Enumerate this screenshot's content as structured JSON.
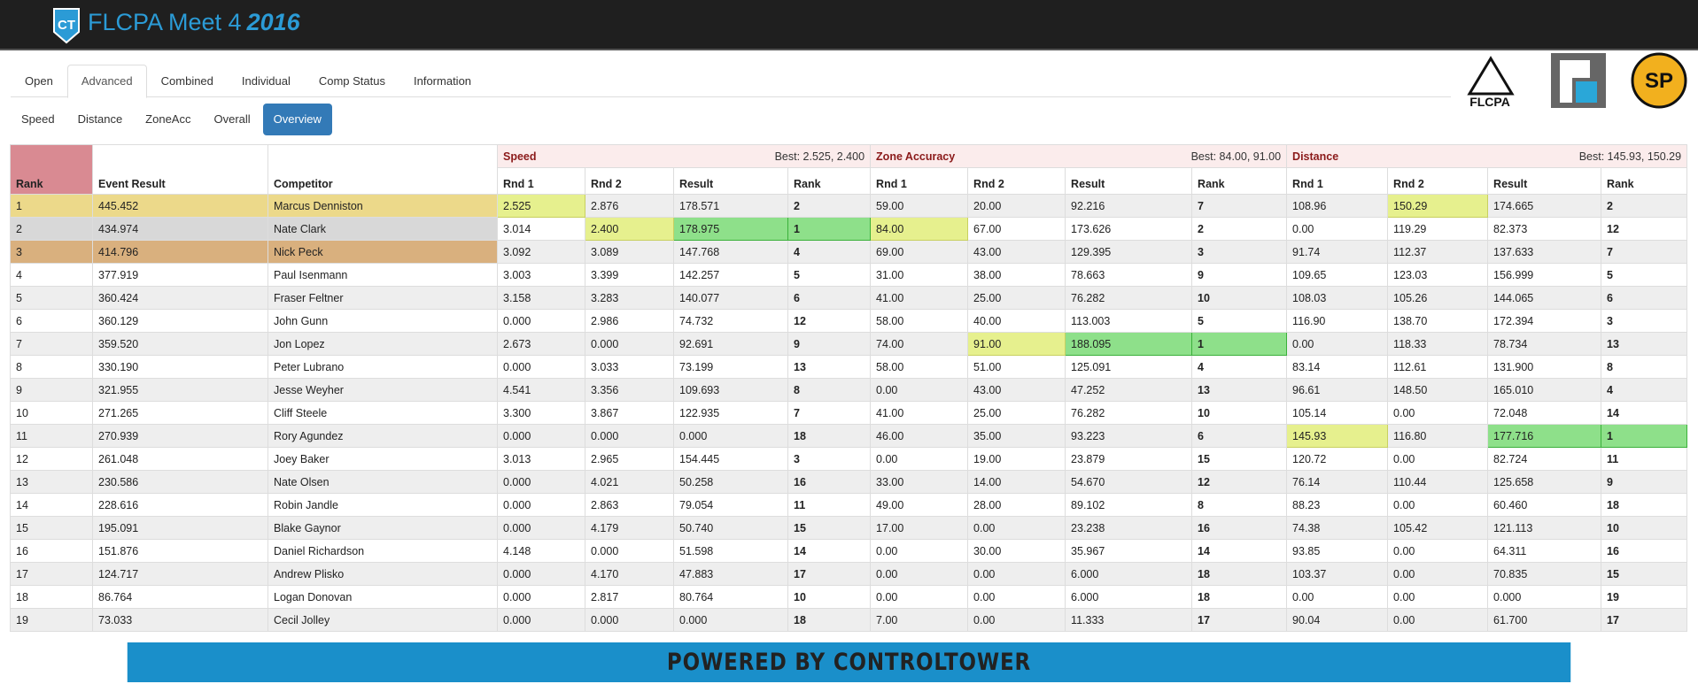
{
  "header": {
    "logo": "CT",
    "title": "FLCPA Meet 4",
    "year": "2016"
  },
  "tabs": [
    "Open",
    "Advanced",
    "Combined",
    "Individual",
    "Comp Status",
    "Information"
  ],
  "subtabs": [
    "Speed",
    "Distance",
    "ZoneAcc",
    "Overall",
    "Overview"
  ],
  "logos": [
    "FLCPA"
  ],
  "table": {
    "groups": [
      {
        "name": "Speed",
        "best": "Best: 2.525, 2.400"
      },
      {
        "name": "Zone Accuracy",
        "best": "Best: 84.00, 91.00"
      },
      {
        "name": "Distance",
        "best": "Best: 145.93, 150.29"
      }
    ],
    "columns": [
      "Rank",
      "Event Result",
      "Competitor",
      "Rnd 1",
      "Rnd 2",
      "Result",
      "Rank",
      "Rnd 1",
      "Rnd 2",
      "Result",
      "Rank",
      "Rnd 1",
      "Rnd 2",
      "Result",
      "Rank"
    ],
    "rows": [
      [
        "1",
        "445.452",
        "Marcus Denniston",
        "2.525",
        "2.876",
        "178.571",
        "2",
        "59.00",
        "20.00",
        "92.216",
        "7",
        "108.96",
        "150.29",
        "174.665",
        "2"
      ],
      [
        "2",
        "434.974",
        "Nate Clark",
        "3.014",
        "2.400",
        "178.975",
        "1",
        "84.00",
        "67.00",
        "173.626",
        "2",
        "0.00",
        "119.29",
        "82.373",
        "12"
      ],
      [
        "3",
        "414.796",
        "Nick Peck",
        "3.092",
        "3.089",
        "147.768",
        "4",
        "69.00",
        "43.00",
        "129.395",
        "3",
        "91.74",
        "112.37",
        "137.633",
        "7"
      ],
      [
        "4",
        "377.919",
        "Paul Isenmann",
        "3.003",
        "3.399",
        "142.257",
        "5",
        "31.00",
        "38.00",
        "78.663",
        "9",
        "109.65",
        "123.03",
        "156.999",
        "5"
      ],
      [
        "5",
        "360.424",
        "Fraser Feltner",
        "3.158",
        "3.283",
        "140.077",
        "6",
        "41.00",
        "25.00",
        "76.282",
        "10",
        "108.03",
        "105.26",
        "144.065",
        "6"
      ],
      [
        "6",
        "360.129",
        "John Gunn",
        "0.000",
        "2.986",
        "74.732",
        "12",
        "58.00",
        "40.00",
        "113.003",
        "5",
        "116.90",
        "138.70",
        "172.394",
        "3"
      ],
      [
        "7",
        "359.520",
        "Jon Lopez",
        "2.673",
        "0.000",
        "92.691",
        "9",
        "74.00",
        "91.00",
        "188.095",
        "1",
        "0.00",
        "118.33",
        "78.734",
        "13"
      ],
      [
        "8",
        "330.190",
        "Peter Lubrano",
        "0.000",
        "3.033",
        "73.199",
        "13",
        "58.00",
        "51.00",
        "125.091",
        "4",
        "83.14",
        "112.61",
        "131.900",
        "8"
      ],
      [
        "9",
        "321.955",
        "Jesse Weyher",
        "4.541",
        "3.356",
        "109.693",
        "8",
        "0.00",
        "43.00",
        "47.252",
        "13",
        "96.61",
        "148.50",
        "165.010",
        "4"
      ],
      [
        "10",
        "271.265",
        "Cliff Steele",
        "3.300",
        "3.867",
        "122.935",
        "7",
        "41.00",
        "25.00",
        "76.282",
        "10",
        "105.14",
        "0.00",
        "72.048",
        "14"
      ],
      [
        "11",
        "270.939",
        "Rory Agundez",
        "0.000",
        "0.000",
        "0.000",
        "18",
        "46.00",
        "35.00",
        "93.223",
        "6",
        "145.93",
        "116.80",
        "177.716",
        "1"
      ],
      [
        "12",
        "261.048",
        "Joey Baker",
        "3.013",
        "2.965",
        "154.445",
        "3",
        "0.00",
        "19.00",
        "23.879",
        "15",
        "120.72",
        "0.00",
        "82.724",
        "11"
      ],
      [
        "13",
        "230.586",
        "Nate Olsen",
        "0.000",
        "4.021",
        "50.258",
        "16",
        "33.00",
        "14.00",
        "54.670",
        "12",
        "76.14",
        "110.44",
        "125.658",
        "9"
      ],
      [
        "14",
        "228.616",
        "Robin Jandle",
        "0.000",
        "2.863",
        "79.054",
        "11",
        "49.00",
        "28.00",
        "89.102",
        "8",
        "88.23",
        "0.00",
        "60.460",
        "18"
      ],
      [
        "15",
        "195.091",
        "Blake Gaynor",
        "0.000",
        "4.179",
        "50.740",
        "15",
        "17.00",
        "0.00",
        "23.238",
        "16",
        "74.38",
        "105.42",
        "121.113",
        "10"
      ],
      [
        "16",
        "151.876",
        "Daniel Richardson",
        "4.148",
        "0.000",
        "51.598",
        "14",
        "0.00",
        "30.00",
        "35.967",
        "14",
        "93.85",
        "0.00",
        "64.311",
        "16"
      ],
      [
        "17",
        "124.717",
        "Andrew Plisko",
        "0.000",
        "4.170",
        "47.883",
        "17",
        "0.00",
        "0.00",
        "6.000",
        "18",
        "103.37",
        "0.00",
        "70.835",
        "15"
      ],
      [
        "18",
        "86.764",
        "Logan Donovan",
        "0.000",
        "2.817",
        "80.764",
        "10",
        "0.00",
        "0.00",
        "6.000",
        "18",
        "0.00",
        "0.00",
        "0.000",
        "19"
      ],
      [
        "19",
        "73.033",
        "Cecil Jolley",
        "0.000",
        "0.000",
        "0.000",
        "18",
        "7.00",
        "0.00",
        "11.333",
        "17",
        "90.04",
        "0.00",
        "61.700",
        "17"
      ]
    ]
  },
  "footer": "POWERED BY CONTROLTOWER"
}
